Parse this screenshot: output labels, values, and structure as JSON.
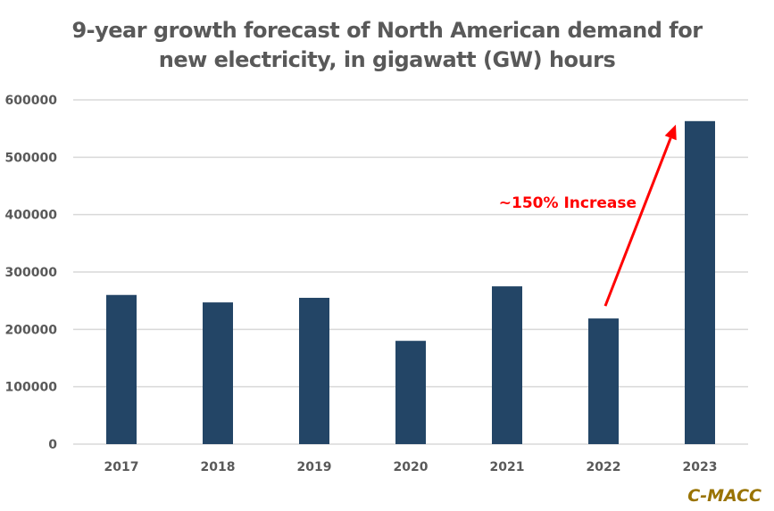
{
  "chart_data": {
    "type": "bar",
    "title": "9-year growth forecast of North American demand for new electricity, in gigawatt (GW) hours",
    "title_lines": [
      "9-year growth forecast of North American demand for",
      "new electricity, in gigawatt (GW) hours"
    ],
    "xlabel": "",
    "ylabel": "",
    "categories": [
      "2017",
      "2018",
      "2019",
      "2020",
      "2021",
      "2022",
      "2023"
    ],
    "values": [
      260000,
      247000,
      255000,
      180000,
      275000,
      219000,
      563000
    ],
    "ylim": [
      0,
      600000
    ],
    "yticks": [
      0,
      100000,
      200000,
      300000,
      400000,
      500000,
      600000
    ],
    "ytick_labels": [
      "0",
      "100000",
      "200000",
      "300000",
      "400000",
      "500000",
      "600000"
    ],
    "grid": true,
    "legend": "none",
    "bar_color": "#234566",
    "annotation": {
      "text": "~150% Increase",
      "color": "#ff0000",
      "arrow_from_category": "2022",
      "arrow_to_category": "2023"
    }
  },
  "brand": {
    "text": "C-MACC",
    "color": "#997300"
  }
}
